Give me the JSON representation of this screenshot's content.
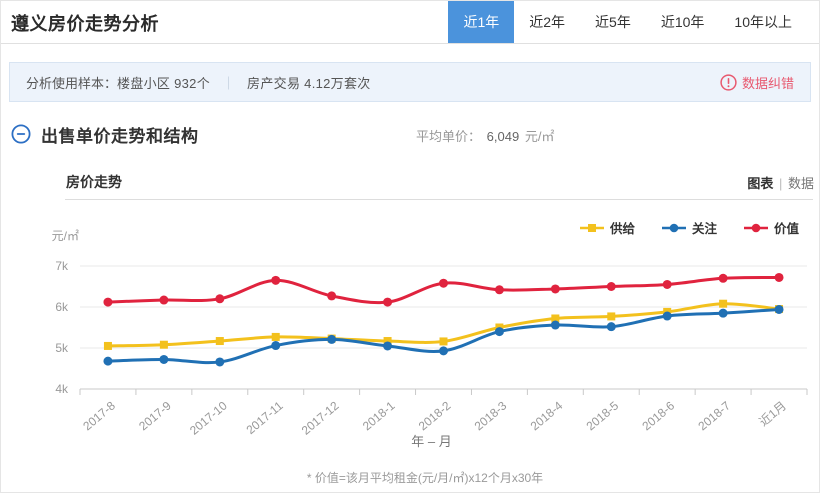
{
  "page": {
    "title": "遵义房价走势分析"
  },
  "header": {
    "tabs": [
      {
        "label": "近1年",
        "active": true
      },
      {
        "label": "近2年",
        "active": false
      },
      {
        "label": "近5年",
        "active": false
      },
      {
        "label": "近10年",
        "active": false
      },
      {
        "label": "10年以上",
        "active": false
      }
    ],
    "active_tab_color": "#4B93DC"
  },
  "sample_bar": {
    "label": "分析使用样本：",
    "sample1": "楼盘小区 932个",
    "separator": "｜",
    "sample2": "房产交易 4.12万套次",
    "correction_label": "数据纠错",
    "correction_color": "#E8596F"
  },
  "section": {
    "title": "出售单价走势和结构",
    "avg_label": "平均单价：",
    "avg_value": "6,049",
    "avg_unit": "元/㎡"
  },
  "panel": {
    "title": "房价走势",
    "view_chart": "图表",
    "view_divider": "|",
    "view_data": "数据"
  },
  "chart_data": {
    "type": "line",
    "title": "房价走势",
    "y_unit": "元/㎡",
    "xlabel": "年 – 月",
    "categories": [
      "2017-8",
      "2017-9",
      "2017-10",
      "2017-11",
      "2017-12",
      "2018-1",
      "2018-2",
      "2018-3",
      "2018-4",
      "2018-5",
      "2018-6",
      "2018-7",
      "近1月"
    ],
    "series": [
      {
        "name": "供给",
        "color": "#F3C11D",
        "marker": "square",
        "values": [
          5050,
          5080,
          5170,
          5270,
          5230,
          5170,
          5160,
          5500,
          5720,
          5770,
          5880,
          6080,
          5950
        ]
      },
      {
        "name": "关注",
        "color": "#2070B4",
        "marker": "circle",
        "values": [
          4680,
          4720,
          4660,
          5060,
          5210,
          5050,
          4930,
          5400,
          5560,
          5520,
          5780,
          5850,
          5940
        ]
      },
      {
        "name": "价值",
        "color": "#E0233E",
        "marker": "circle",
        "values": [
          6120,
          6170,
          6200,
          6650,
          6270,
          6120,
          6580,
          6420,
          6440,
          6500,
          6550,
          6700,
          6720
        ]
      }
    ],
    "ylim": [
      4000,
      7000
    ],
    "yticks": [
      {
        "value": 4000,
        "label": "4k"
      },
      {
        "value": 5000,
        "label": "5k"
      },
      {
        "value": 6000,
        "label": "6k"
      },
      {
        "value": 7000,
        "label": "7k"
      }
    ],
    "grid": true,
    "smooth": true,
    "legend_position": "top-right"
  },
  "footnote": "* 价值=该月平均租金(元/月/㎡)x12个月x30年"
}
